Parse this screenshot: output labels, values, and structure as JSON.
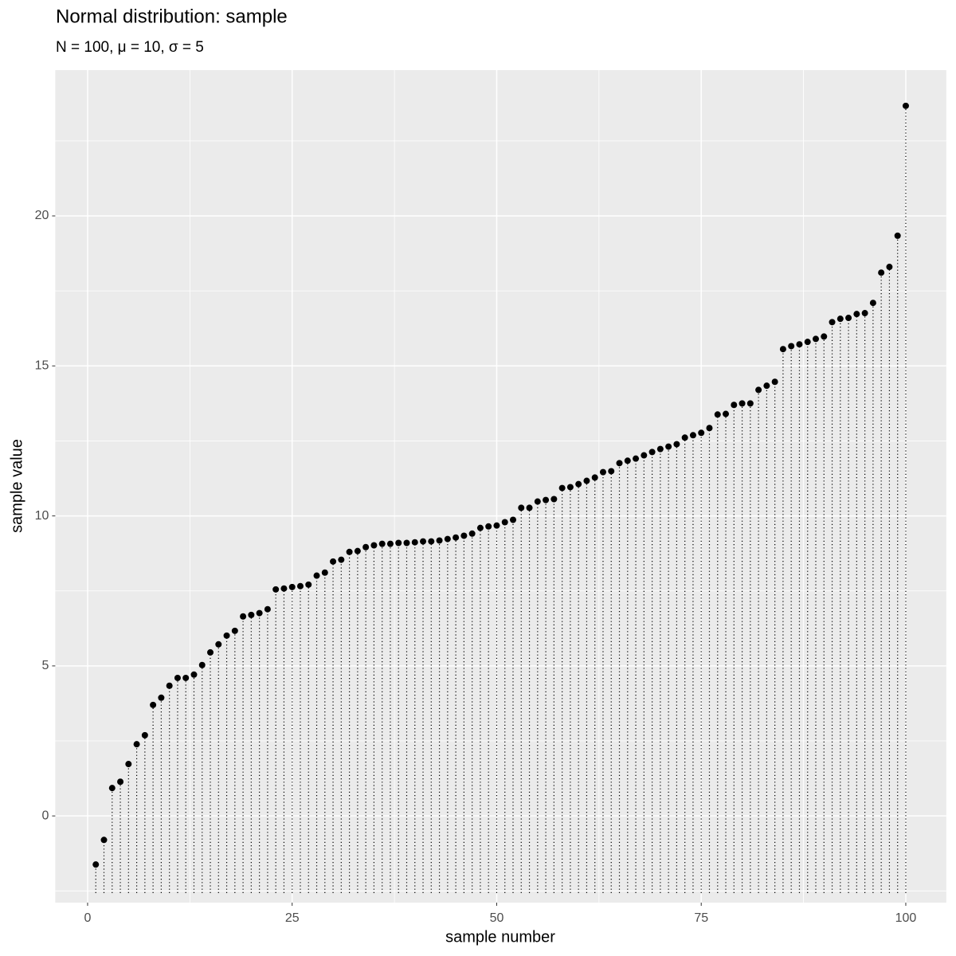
{
  "chart_data": {
    "type": "lollipop",
    "title": "Normal distribution: sample",
    "subtitle": "N = 100, μ = 10, σ = 5",
    "xlabel": "sample number",
    "ylabel": "sample value",
    "x": [
      1,
      2,
      3,
      4,
      5,
      6,
      7,
      8,
      9,
      10,
      11,
      12,
      13,
      14,
      15,
      16,
      17,
      18,
      19,
      20,
      21,
      22,
      23,
      24,
      25,
      26,
      27,
      28,
      29,
      30,
      31,
      32,
      33,
      34,
      35,
      36,
      37,
      38,
      39,
      40,
      41,
      42,
      43,
      44,
      45,
      46,
      47,
      48,
      49,
      50,
      51,
      52,
      53,
      54,
      55,
      56,
      57,
      58,
      59,
      60,
      61,
      62,
      63,
      64,
      65,
      66,
      67,
      68,
      69,
      70,
      71,
      72,
      73,
      74,
      75,
      76,
      77,
      78,
      79,
      80,
      81,
      82,
      83,
      84,
      85,
      86,
      87,
      88,
      89,
      90,
      91,
      92,
      93,
      94,
      95,
      96,
      97,
      98,
      99,
      100
    ],
    "values": [
      -1.62,
      -0.8,
      0.93,
      1.14,
      1.73,
      2.39,
      2.69,
      3.7,
      3.94,
      4.34,
      4.6,
      4.6,
      4.71,
      5.03,
      5.45,
      5.72,
      6.01,
      6.17,
      6.65,
      6.7,
      6.76,
      6.89,
      7.55,
      7.58,
      7.63,
      7.66,
      7.71,
      8.01,
      8.11,
      8.48,
      8.54,
      8.8,
      8.83,
      8.96,
      9.02,
      9.07,
      9.07,
      9.1,
      9.1,
      9.12,
      9.15,
      9.15,
      9.18,
      9.23,
      9.28,
      9.34,
      9.41,
      9.6,
      9.65,
      9.68,
      9.79,
      9.87,
      10.27,
      10.27,
      10.48,
      10.53,
      10.56,
      10.93,
      10.96,
      11.06,
      11.17,
      11.28,
      11.46,
      11.49,
      11.76,
      11.84,
      11.91,
      12.02,
      12.13,
      12.23,
      12.31,
      12.39,
      12.61,
      12.69,
      12.77,
      12.93,
      13.38,
      13.4,
      13.7,
      13.75,
      13.75,
      14.2,
      14.34,
      14.47,
      15.56,
      15.66,
      15.72,
      15.8,
      15.9,
      15.98,
      16.46,
      16.57,
      16.6,
      16.73,
      16.76,
      17.1,
      18.11,
      18.3,
      19.34,
      23.67
    ],
    "color": "#000000",
    "panel_color": "#ebebeb",
    "grid": true,
    "xlim": [
      -3.95,
      104.95
    ],
    "xticks": [
      0,
      25,
      50,
      75,
      100
    ],
    "ylim": [
      -2.89,
      24.86
    ],
    "yticks": [
      0,
      5,
      10,
      15,
      20
    ]
  }
}
